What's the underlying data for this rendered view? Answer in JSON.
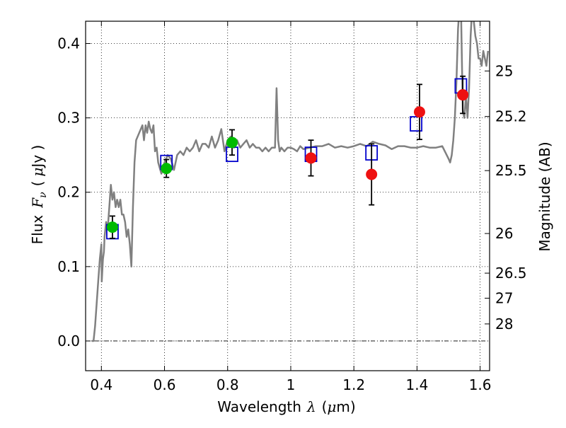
{
  "chart_data": {
    "type": "scatter",
    "title": "",
    "xlabel": "Wavelength",
    "xlabel_symbol": "λ",
    "xlabel_unit_prefix": "(",
    "xlabel_unit": "μ",
    "xlabel_unit_suffix": "m)",
    "ylabel": "Flux",
    "ylabel_symbol": "F",
    "ylabel_symbol_sub": "ν",
    "ylabel_unit_prefix": "(",
    "ylabel_unit": "μ",
    "ylabel_unit_suffix": "Jy )",
    "y2label": "Magnitude (AB)",
    "xlim": [
      0.35,
      1.63
    ],
    "ylim": [
      -0.04,
      0.43
    ],
    "grid": true,
    "grid_style": "dotted",
    "x_ticks": [
      {
        "value": 0.4,
        "label": "0.4"
      },
      {
        "value": 0.6,
        "label": "0.6"
      },
      {
        "value": 0.8,
        "label": "0.8"
      },
      {
        "value": 1.0,
        "label": "1"
      },
      {
        "value": 1.2,
        "label": "1.2"
      },
      {
        "value": 1.4,
        "label": "1.4"
      },
      {
        "value": 1.6,
        "label": "1.6"
      }
    ],
    "y_ticks": [
      {
        "value": 0.0,
        "label": "0.0"
      },
      {
        "value": 0.1,
        "label": "0.1"
      },
      {
        "value": 0.2,
        "label": "0.2"
      },
      {
        "value": 0.3,
        "label": "0.3"
      },
      {
        "value": 0.4,
        "label": "0.4"
      }
    ],
    "magnitude_ticks": [
      {
        "flux": 0.3631,
        "label": "25"
      },
      {
        "flux": 0.3019,
        "label": "25.2"
      },
      {
        "flux": 0.2291,
        "label": "25.5"
      },
      {
        "flux": 0.1445,
        "label": "26"
      },
      {
        "flux": 0.0912,
        "label": "26.5"
      },
      {
        "flux": 0.0575,
        "label": "27"
      },
      {
        "flux": 0.0229,
        "label": "28"
      }
    ],
    "colors": {
      "model": "#808080",
      "green": "#00bb00",
      "red": "#ee1111",
      "model_box": "#0000cc",
      "errorbar": "#000000"
    },
    "series": [
      {
        "kind": "model_spectrum",
        "x": [
          0.37,
          0.375,
          0.38,
          0.385,
          0.39,
          0.395,
          0.4,
          0.401,
          0.405,
          0.408,
          0.41,
          0.415,
          0.42,
          0.425,
          0.43,
          0.435,
          0.44,
          0.445,
          0.45,
          0.455,
          0.46,
          0.465,
          0.47,
          0.475,
          0.48,
          0.485,
          0.49,
          0.495,
          0.5,
          0.505,
          0.51,
          0.52,
          0.53,
          0.535,
          0.54,
          0.545,
          0.55,
          0.555,
          0.56,
          0.565,
          0.57,
          0.575,
          0.58,
          0.59,
          0.6,
          0.61,
          0.62,
          0.63,
          0.64,
          0.65,
          0.66,
          0.67,
          0.68,
          0.69,
          0.7,
          0.71,
          0.72,
          0.73,
          0.74,
          0.75,
          0.76,
          0.77,
          0.78,
          0.79,
          0.8,
          0.81,
          0.82,
          0.83,
          0.84,
          0.85,
          0.86,
          0.87,
          0.88,
          0.89,
          0.9,
          0.91,
          0.92,
          0.93,
          0.94,
          0.95,
          0.955,
          0.96,
          0.965,
          0.97,
          0.98,
          0.99,
          1.0,
          1.01,
          1.02,
          1.03,
          1.04,
          1.06,
          1.08,
          1.1,
          1.12,
          1.14,
          1.16,
          1.18,
          1.2,
          1.22,
          1.24,
          1.26,
          1.28,
          1.3,
          1.32,
          1.34,
          1.36,
          1.38,
          1.4,
          1.42,
          1.44,
          1.46,
          1.48,
          1.5,
          1.505,
          1.51,
          1.515,
          1.52,
          1.525,
          1.53,
          1.535,
          1.54,
          1.545,
          1.55,
          1.555,
          1.56,
          1.565,
          1.57,
          1.575,
          1.58,
          1.585,
          1.59,
          1.595,
          1.6,
          1.605,
          1.61,
          1.615,
          1.62,
          1.625
        ],
        "y": [
          0.0,
          0.0,
          0.02,
          0.05,
          0.08,
          0.11,
          0.13,
          0.08,
          0.11,
          0.12,
          0.14,
          0.16,
          0.15,
          0.18,
          0.21,
          0.19,
          0.2,
          0.18,
          0.19,
          0.18,
          0.19,
          0.17,
          0.17,
          0.16,
          0.14,
          0.15,
          0.13,
          0.1,
          0.18,
          0.24,
          0.27,
          0.28,
          0.29,
          0.27,
          0.29,
          0.28,
          0.295,
          0.285,
          0.28,
          0.29,
          0.255,
          0.26,
          0.24,
          0.225,
          0.24,
          0.25,
          0.245,
          0.23,
          0.25,
          0.255,
          0.25,
          0.26,
          0.255,
          0.26,
          0.27,
          0.255,
          0.265,
          0.265,
          0.26,
          0.275,
          0.26,
          0.27,
          0.285,
          0.255,
          0.27,
          0.275,
          0.26,
          0.27,
          0.26,
          0.265,
          0.27,
          0.26,
          0.265,
          0.26,
          0.26,
          0.255,
          0.26,
          0.255,
          0.26,
          0.26,
          0.34,
          0.27,
          0.255,
          0.26,
          0.255,
          0.26,
          0.26,
          0.258,
          0.255,
          0.262,
          0.258,
          0.26,
          0.262,
          0.262,
          0.265,
          0.26,
          0.262,
          0.26,
          0.262,
          0.265,
          0.262,
          0.268,
          0.265,
          0.263,
          0.258,
          0.262,
          0.262,
          0.26,
          0.26,
          0.262,
          0.26,
          0.26,
          0.262,
          0.245,
          0.24,
          0.25,
          0.27,
          0.3,
          0.35,
          0.42,
          0.45,
          0.43,
          0.31,
          0.3,
          0.33,
          0.3,
          0.34,
          0.41,
          0.45,
          0.43,
          0.41,
          0.4,
          0.38,
          0.38,
          0.37,
          0.39,
          0.38,
          0.37,
          0.39
        ]
      },
      {
        "kind": "model_photometry_boxes",
        "x": [
          0.435,
          0.606,
          0.814,
          1.064,
          1.256,
          1.397,
          1.539
        ],
        "y": [
          0.147,
          0.24,
          0.251,
          0.251,
          0.253,
          0.292,
          0.343
        ]
      },
      {
        "kind": "observed_green",
        "x": [
          0.435,
          0.606,
          0.814
        ],
        "y": [
          0.153,
          0.232,
          0.267
        ],
        "yerr": [
          0.015,
          0.012,
          0.017
        ]
      },
      {
        "kind": "observed_red",
        "x": [
          1.064,
          1.256,
          1.408,
          1.545
        ],
        "y": [
          0.246,
          0.224,
          0.308,
          0.331
        ],
        "yerr": [
          0.024,
          0.041,
          0.037,
          0.025
        ]
      }
    ]
  }
}
